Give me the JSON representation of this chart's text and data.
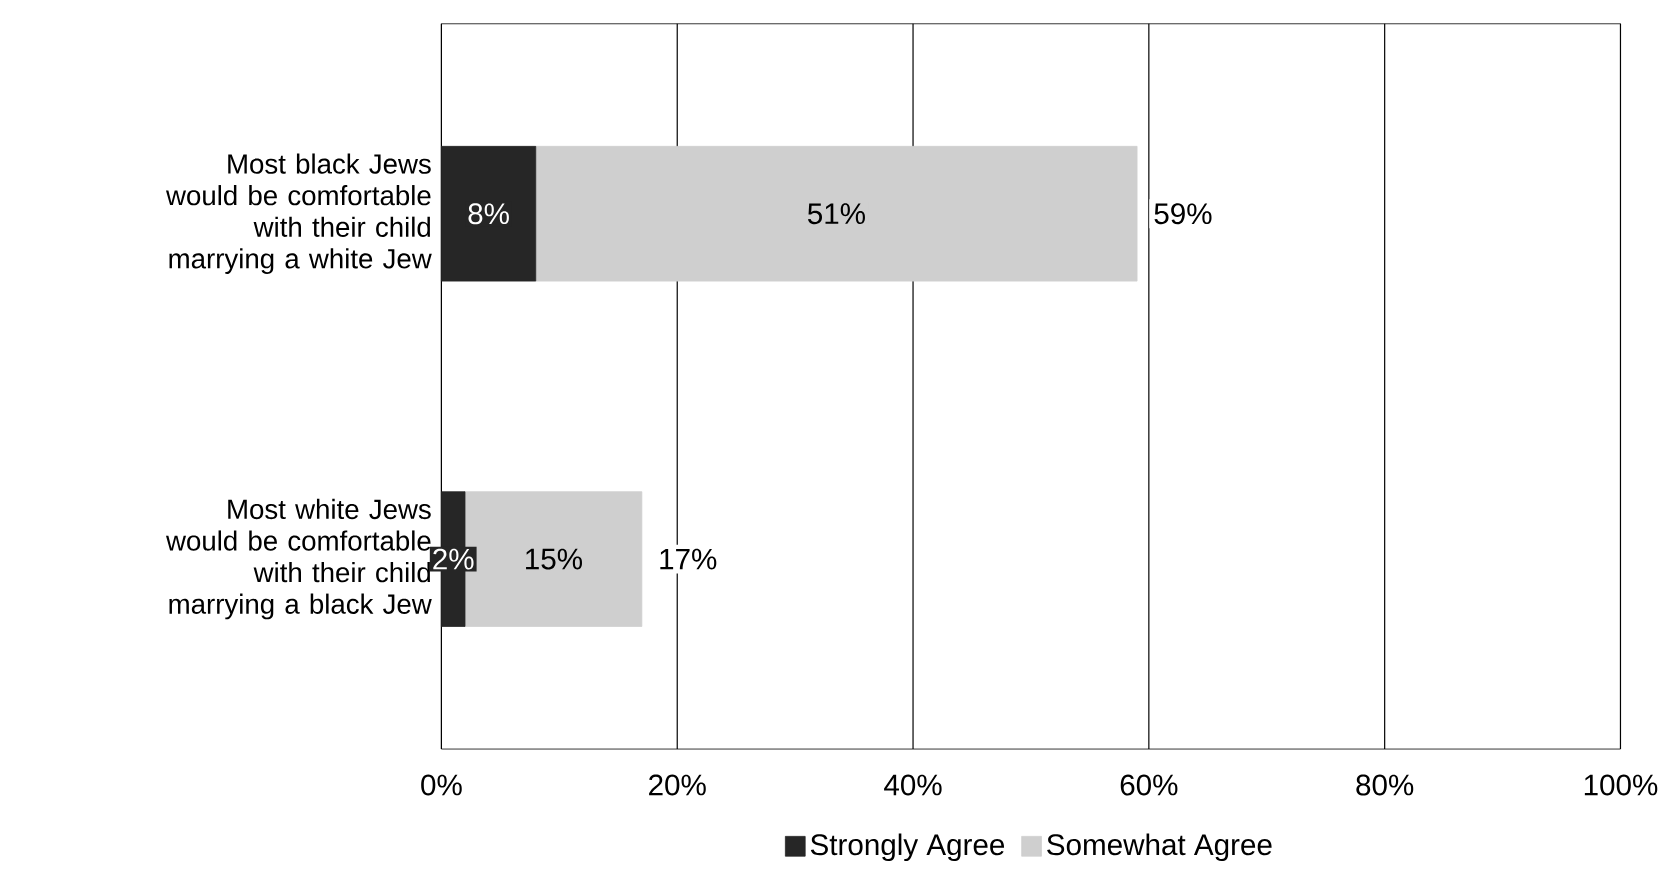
{
  "chart_data": {
    "type": "bar",
    "orientation": "horizontal",
    "stacked": true,
    "categories": [
      "Most black Jews would be comfortable with their child marrying a white Jew",
      "Most white Jews would be comfortable with their child marrying a black Jew"
    ],
    "series": [
      {
        "name": "Strongly Agree",
        "color": "#262626",
        "values": [
          8,
          2
        ],
        "value_labels": [
          "8%",
          "2%"
        ]
      },
      {
        "name": "Somewhat Agree",
        "color": "#cfcfcf",
        "values": [
          51,
          15
        ],
        "value_labels": [
          "51%",
          "15%"
        ]
      }
    ],
    "totals": [
      "59%",
      "17%"
    ],
    "xlim": [
      0,
      100
    ],
    "xticks": [
      {
        "value": 0,
        "label": "0%"
      },
      {
        "value": 20,
        "label": "20%"
      },
      {
        "value": 40,
        "label": "40%"
      },
      {
        "value": 60,
        "label": "60%"
      },
      {
        "value": 80,
        "label": "80%"
      },
      {
        "value": 100,
        "label": "100%"
      }
    ],
    "grid": "x",
    "legend": "bottom"
  }
}
